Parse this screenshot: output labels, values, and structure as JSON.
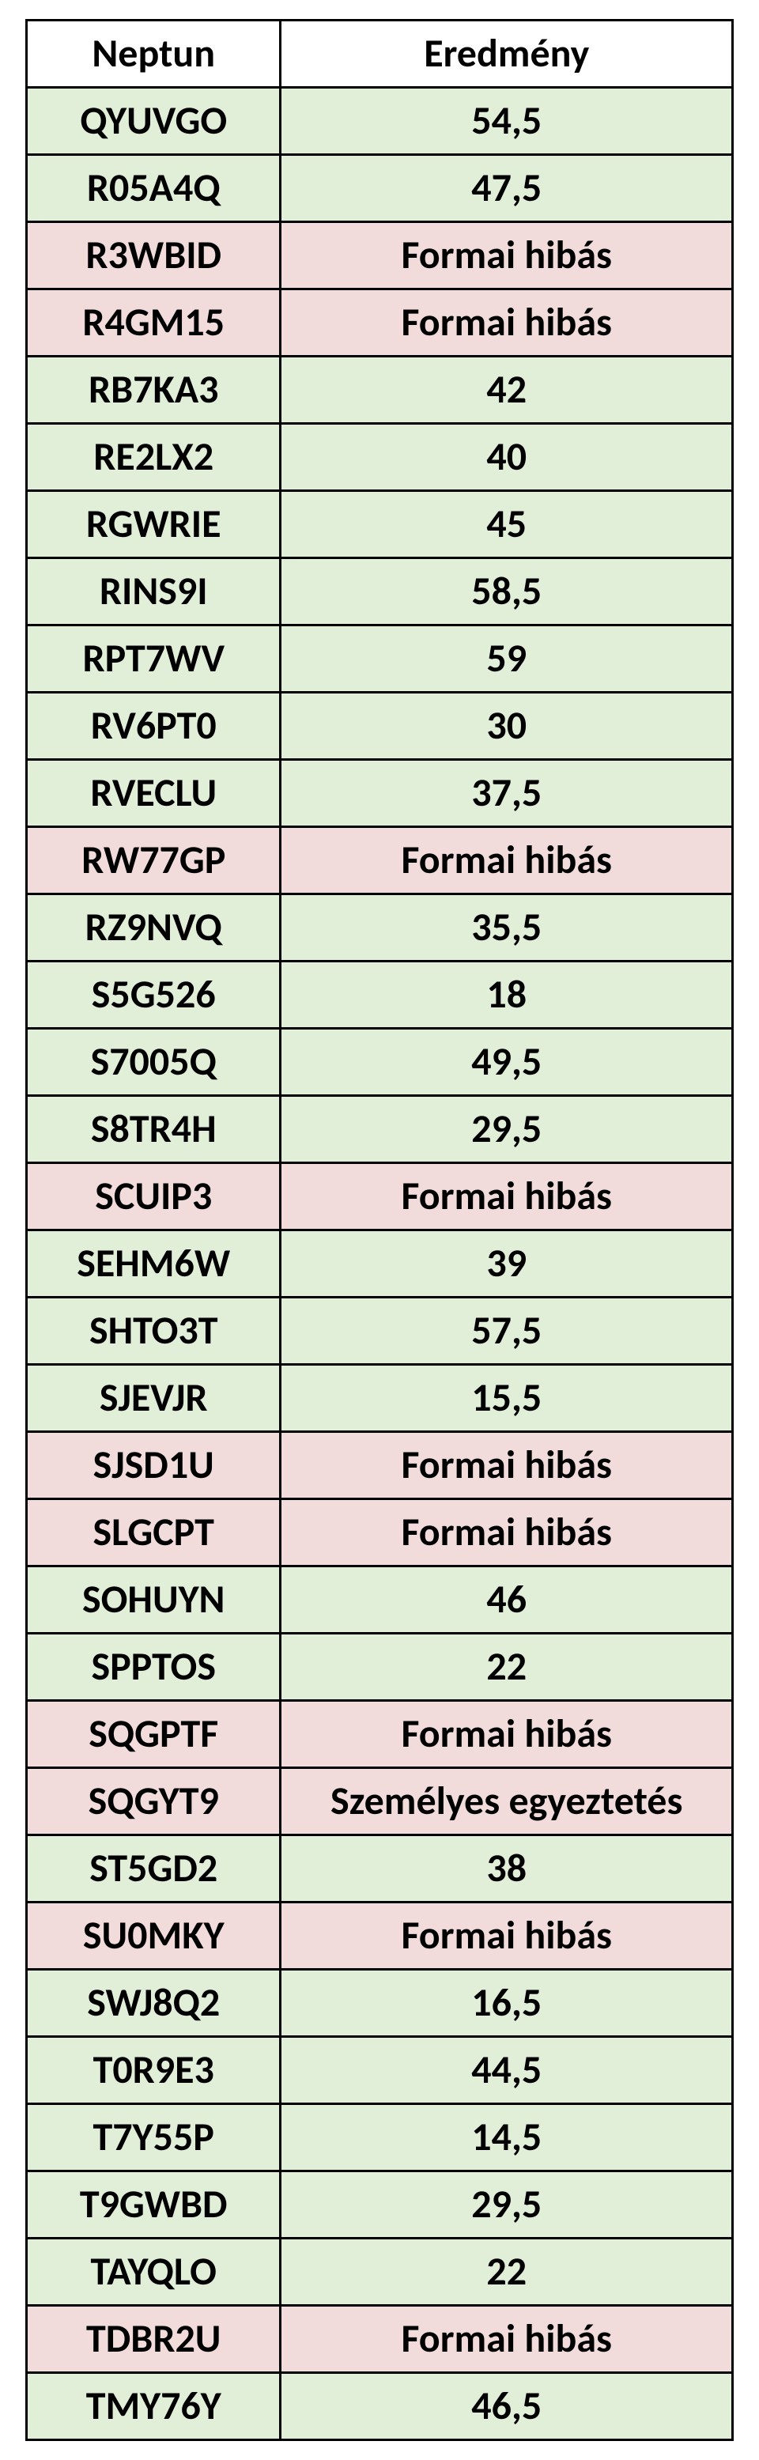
{
  "table": {
    "header": {
      "col1": "Neptun",
      "col2": "Eredmény"
    },
    "colors": {
      "green": "#e1efd9",
      "pink": "#f2dcdb",
      "border": "#000000",
      "text": "#000000"
    },
    "font": {
      "family": "Calibri",
      "header_size_pt": 38,
      "cell_size_pt": 38,
      "weight": 700
    },
    "column_widths_pct": [
      36,
      64
    ],
    "rows": [
      {
        "code": "QYUVGO",
        "value": "54,5",
        "color": "green"
      },
      {
        "code": "R05A4Q",
        "value": "47,5",
        "color": "green"
      },
      {
        "code": "R3WBID",
        "value": "Formai hibás",
        "color": "pink"
      },
      {
        "code": "R4GM15",
        "value": "Formai hibás",
        "color": "pink"
      },
      {
        "code": "RB7KA3",
        "value": "42",
        "color": "green"
      },
      {
        "code": "RE2LX2",
        "value": "40",
        "color": "green"
      },
      {
        "code": "RGWRIE",
        "value": "45",
        "color": "green"
      },
      {
        "code": "RINS9I",
        "value": "58,5",
        "color": "green"
      },
      {
        "code": "RPT7WV",
        "value": "59",
        "color": "green"
      },
      {
        "code": "RV6PT0",
        "value": "30",
        "color": "green"
      },
      {
        "code": "RVECLU",
        "value": "37,5",
        "color": "green"
      },
      {
        "code": "RW77GP",
        "value": "Formai hibás",
        "color": "pink"
      },
      {
        "code": "RZ9NVQ",
        "value": "35,5",
        "color": "green"
      },
      {
        "code": "S5G526",
        "value": "18",
        "color": "green"
      },
      {
        "code": "S7005Q",
        "value": "49,5",
        "color": "green"
      },
      {
        "code": "S8TR4H",
        "value": "29,5",
        "color": "green"
      },
      {
        "code": "SCUIP3",
        "value": "Formai hibás",
        "color": "pink"
      },
      {
        "code": "SEHM6W",
        "value": "39",
        "color": "green"
      },
      {
        "code": "SHTO3T",
        "value": "57,5",
        "color": "green"
      },
      {
        "code": "SJEVJR",
        "value": "15,5",
        "color": "green"
      },
      {
        "code": "SJSD1U",
        "value": "Formai hibás",
        "color": "pink"
      },
      {
        "code": "SLGCPT",
        "value": "Formai hibás",
        "color": "pink"
      },
      {
        "code": "SOHUYN",
        "value": "46",
        "color": "green"
      },
      {
        "code": "SPPTOS",
        "value": "22",
        "color": "green"
      },
      {
        "code": "SQGPTF",
        "value": "Formai hibás",
        "color": "pink"
      },
      {
        "code": "SQGYT9",
        "value": "Személyes egyeztetés",
        "color": "pink"
      },
      {
        "code": "ST5GD2",
        "value": "38",
        "color": "green"
      },
      {
        "code": "SU0MKY",
        "value": "Formai hibás",
        "color": "pink"
      },
      {
        "code": "SWJ8Q2",
        "value": "16,5",
        "color": "green"
      },
      {
        "code": "T0R9E3",
        "value": "44,5",
        "color": "green"
      },
      {
        "code": "T7Y55P",
        "value": "14,5",
        "color": "green"
      },
      {
        "code": "T9GWBD",
        "value": "29,5",
        "color": "green"
      },
      {
        "code": "TAYQLO",
        "value": "22",
        "color": "green"
      },
      {
        "code": "TDBR2U",
        "value": "Formai hibás",
        "color": "pink"
      },
      {
        "code": "TMY76Y",
        "value": "46,5",
        "color": "green"
      }
    ]
  }
}
